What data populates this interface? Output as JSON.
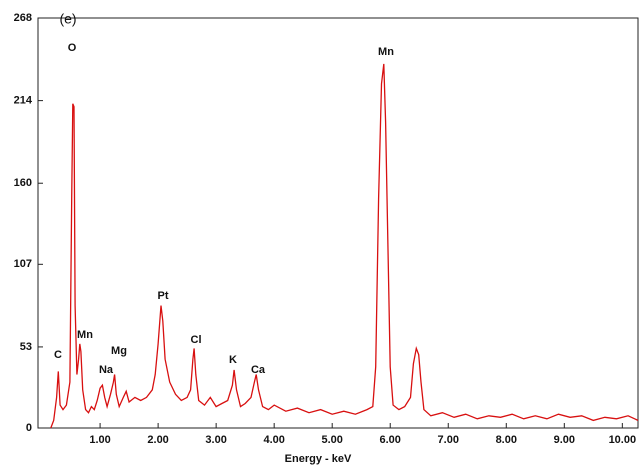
{
  "chart_data": {
    "type": "line",
    "panel_label": "(e)",
    "x_label": "Energy - keV",
    "xlim": [
      -0.07,
      10.27
    ],
    "ylim": [
      0,
      268
    ],
    "yticks": [
      0,
      53,
      107,
      160,
      214,
      268
    ],
    "xticks": [
      {
        "value": 1,
        "label": "1.00"
      },
      {
        "value": 2,
        "label": "2.00"
      },
      {
        "value": 3,
        "label": "3.00"
      },
      {
        "value": 4,
        "label": "4.00"
      },
      {
        "value": 5,
        "label": "5.00"
      },
      {
        "value": 6,
        "label": "6.00"
      },
      {
        "value": 7,
        "label": "7.00"
      },
      {
        "value": 8,
        "label": "8.00"
      },
      {
        "value": 9,
        "label": "9.00"
      },
      {
        "value": 10,
        "label": "10.00"
      }
    ],
    "annotations": [
      "O",
      "Mn",
      "Pt",
      "Cl",
      "Mn",
      "Mg",
      "Na",
      "C",
      "K",
      "Ca"
    ],
    "color": "#d81010",
    "x": [
      0.15,
      0.2,
      0.25,
      0.28,
      0.31,
      0.36,
      0.42,
      0.48,
      0.51,
      0.53,
      0.55,
      0.57,
      0.6,
      0.63,
      0.65,
      0.67,
      0.7,
      0.75,
      0.8,
      0.85,
      0.9,
      0.95,
      1.0,
      1.04,
      1.08,
      1.12,
      1.18,
      1.23,
      1.25,
      1.28,
      1.33,
      1.4,
      1.45,
      1.5,
      1.6,
      1.7,
      1.8,
      1.9,
      1.95,
      2.0,
      2.05,
      2.08,
      2.12,
      2.2,
      2.3,
      2.4,
      2.5,
      2.56,
      2.6,
      2.62,
      2.65,
      2.7,
      2.8,
      2.9,
      3.0,
      3.1,
      3.2,
      3.28,
      3.31,
      3.35,
      3.42,
      3.5,
      3.6,
      3.66,
      3.69,
      3.73,
      3.8,
      3.9,
      4.0,
      4.2,
      4.4,
      4.6,
      4.8,
      5.0,
      5.2,
      5.4,
      5.6,
      5.7,
      5.75,
      5.8,
      5.85,
      5.89,
      5.92,
      5.96,
      6.0,
      6.05,
      6.15,
      6.25,
      6.35,
      6.4,
      6.45,
      6.49,
      6.53,
      6.58,
      6.7,
      6.9,
      7.1,
      7.3,
      7.5,
      7.7,
      7.9,
      8.1,
      8.3,
      8.5,
      8.7,
      8.9,
      9.1,
      9.3,
      9.5,
      9.7,
      9.9,
      10.1,
      10.27
    ],
    "values": [
      0,
      5,
      20,
      37,
      15,
      12,
      15,
      30,
      150,
      212,
      210,
      80,
      35,
      45,
      55,
      50,
      25,
      12,
      10,
      14,
      12,
      18,
      26,
      28,
      20,
      14,
      22,
      30,
      35,
      22,
      14,
      20,
      24,
      17,
      20,
      18,
      20,
      25,
      35,
      55,
      80,
      70,
      45,
      30,
      22,
      18,
      20,
      25,
      45,
      52,
      35,
      18,
      15,
      20,
      14,
      16,
      18,
      28,
      38,
      25,
      14,
      16,
      20,
      30,
      35,
      25,
      14,
      12,
      15,
      11,
      13,
      10,
      12,
      9,
      11,
      9,
      12,
      14,
      40,
      150,
      225,
      238,
      200,
      120,
      40,
      15,
      12,
      14,
      20,
      42,
      52,
      48,
      30,
      12,
      8,
      10,
      7,
      9,
      6,
      8,
      7,
      9,
      6,
      8,
      6,
      9,
      7,
      8,
      5,
      7,
      6,
      8,
      5
    ]
  }
}
